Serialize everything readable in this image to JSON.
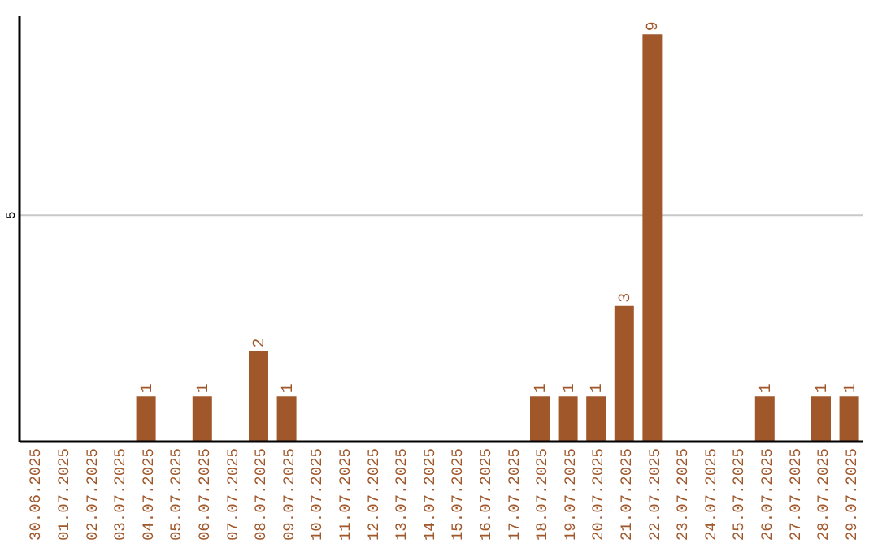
{
  "chart_data": {
    "type": "bar",
    "categories": [
      "30.06.2025",
      "01.07.2025",
      "02.07.2025",
      "03.07.2025",
      "04.07.2025",
      "05.07.2025",
      "06.07.2025",
      "07.07.2025",
      "08.07.2025",
      "09.07.2025",
      "10.07.2025",
      "11.07.2025",
      "12.07.2025",
      "13.07.2025",
      "14.07.2025",
      "15.07.2025",
      "16.07.2025",
      "17.07.2025",
      "18.07.2025",
      "19.07.2025",
      "20.07.2025",
      "21.07.2025",
      "22.07.2025",
      "23.07.2025",
      "24.07.2025",
      "25.07.2025",
      "26.07.2025",
      "27.07.2025",
      "28.07.2025",
      "29.07.2025"
    ],
    "values": [
      null,
      null,
      null,
      null,
      1,
      null,
      1,
      null,
      2,
      1,
      null,
      null,
      null,
      null,
      null,
      null,
      null,
      null,
      1,
      1,
      1,
      3,
      9,
      null,
      null,
      null,
      1,
      null,
      1,
      1
    ],
    "color": "#a0572a",
    "ylim": [
      0,
      9.4
    ],
    "yticks": [
      5
    ],
    "grid": "y",
    "data_labels": true
  }
}
